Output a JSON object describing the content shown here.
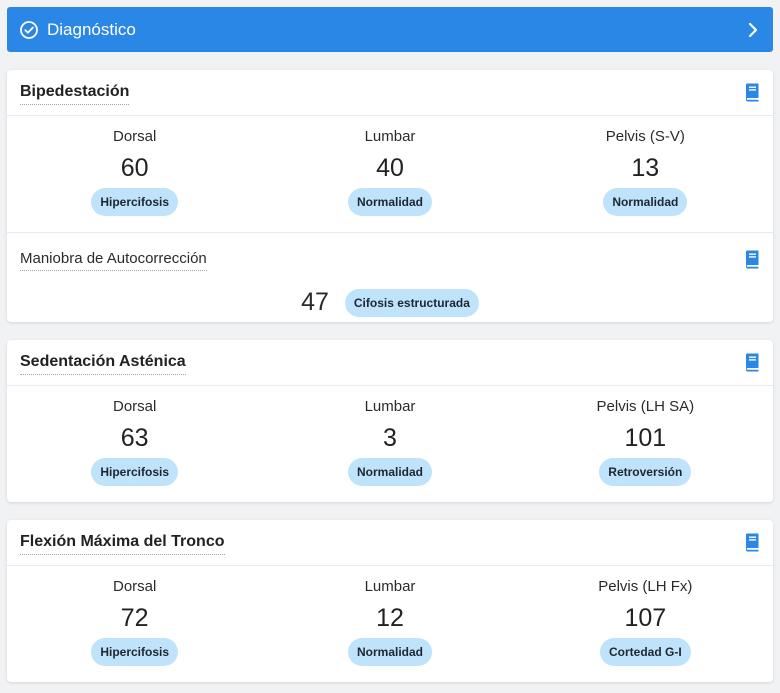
{
  "header": {
    "title": "Diagnóstico",
    "check_icon": "check-circle-icon",
    "chevron_icon": "chevron-right-icon",
    "color": "#2a87e6"
  },
  "bipedestacion": {
    "title": "Bipedestación",
    "metrics": [
      {
        "label": "Dorsal",
        "value": "60",
        "badge": "Hipercifosis"
      },
      {
        "label": "Lumbar",
        "value": "40",
        "badge": "Normalidad"
      },
      {
        "label": "Pelvis (S-V)",
        "value": "13",
        "badge": "Normalidad"
      }
    ],
    "maniobra": {
      "title": "Maniobra de Autocorrección",
      "value": "47",
      "badge": "Cifosis estructurada"
    }
  },
  "sedentacion": {
    "title": "Sedentación Asténica",
    "metrics": [
      {
        "label": "Dorsal",
        "value": "63",
        "badge": "Hipercifosis"
      },
      {
        "label": "Lumbar",
        "value": "3",
        "badge": "Normalidad"
      },
      {
        "label": "Pelvis (LH SA)",
        "value": "101",
        "badge": "Retroversión"
      }
    ]
  },
  "flexion": {
    "title": "Flexión Máxima del Tronco",
    "metrics": [
      {
        "label": "Dorsal",
        "value": "72",
        "badge": "Hipercifosis"
      },
      {
        "label": "Lumbar",
        "value": "12",
        "badge": "Normalidad"
      },
      {
        "label": "Pelvis (LH Fx)",
        "value": "107",
        "badge": "Cortedad G-I"
      }
    ]
  },
  "colors": {
    "badge_bg": "#bfe3fb",
    "book_icon": "#2a87e6"
  }
}
